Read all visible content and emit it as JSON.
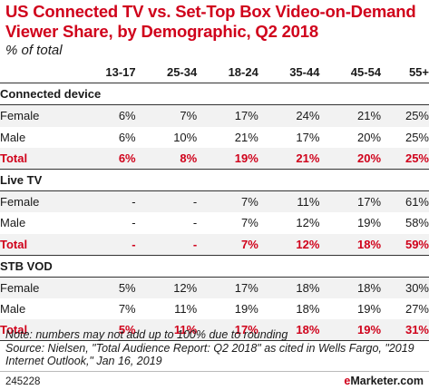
{
  "title": "US Connected TV vs. Set-Top Box Video-on-Demand Viewer Share, by Demographic, Q2 2018",
  "subtitle": "% of total",
  "chart_data": {
    "type": "table",
    "columns": [
      "13-17",
      "25-34",
      "18-24",
      "35-44",
      "45-54",
      "55+"
    ],
    "sections": [
      {
        "name": "Connected device",
        "rows": [
          {
            "label": "Female",
            "values": [
              "6%",
              "7%",
              "17%",
              "24%",
              "21%",
              "25%"
            ]
          },
          {
            "label": "Male",
            "values": [
              "6%",
              "10%",
              "21%",
              "17%",
              "20%",
              "25%"
            ]
          },
          {
            "label": "Total",
            "values": [
              "6%",
              "8%",
              "19%",
              "21%",
              "20%",
              "25%"
            ]
          }
        ]
      },
      {
        "name": "Live TV",
        "rows": [
          {
            "label": "Female",
            "values": [
              "-",
              "-",
              "7%",
              "11%",
              "17%",
              "61%"
            ]
          },
          {
            "label": "Male",
            "values": [
              "-",
              "-",
              "7%",
              "12%",
              "19%",
              "58%"
            ]
          },
          {
            "label": "Total",
            "values": [
              "-",
              "-",
              "7%",
              "12%",
              "18%",
              "59%"
            ]
          }
        ]
      },
      {
        "name": "STB VOD",
        "rows": [
          {
            "label": "Female",
            "values": [
              "5%",
              "12%",
              "17%",
              "18%",
              "18%",
              "30%"
            ]
          },
          {
            "label": "Male",
            "values": [
              "7%",
              "11%",
              "19%",
              "18%",
              "19%",
              "27%"
            ]
          },
          {
            "label": "Total",
            "values": [
              "5%",
              "11%",
              "17%",
              "18%",
              "19%",
              "31%"
            ]
          }
        ]
      }
    ]
  },
  "note": "Note: numbers may not add up to 100% due to rounding",
  "source": "Source: Nielsen, \"Total Audience Report: Q2 2018\" as cited in Wells Fargo, \"2019 Internet Outlook,\" Jan 16, 2019",
  "chart_id": "245228",
  "brand": {
    "prefix": "e",
    "name": "Marketer",
    "suffix": ".com"
  },
  "colors": {
    "accent": "#d0021b",
    "row_shade": "#f2f2f2"
  }
}
